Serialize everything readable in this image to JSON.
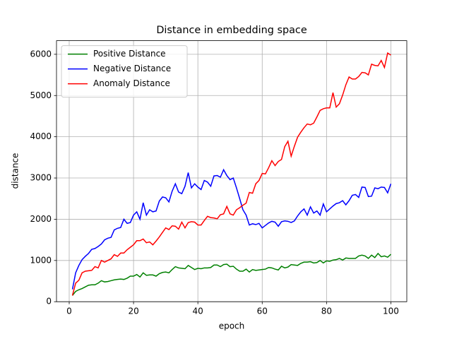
{
  "chart_data": {
    "type": "line",
    "title": "Distance in embedding space",
    "xlabel": "epoch",
    "ylabel": "distance",
    "x": [
      1,
      2,
      3,
      4,
      5,
      6,
      7,
      8,
      9,
      10,
      11,
      12,
      13,
      14,
      15,
      16,
      17,
      18,
      19,
      20,
      21,
      22,
      23,
      24,
      25,
      26,
      27,
      28,
      29,
      30,
      31,
      32,
      33,
      34,
      35,
      36,
      37,
      38,
      39,
      40,
      41,
      42,
      43,
      44,
      45,
      46,
      47,
      48,
      49,
      50,
      51,
      52,
      53,
      54,
      55,
      56,
      57,
      58,
      59,
      60,
      61,
      62,
      63,
      64,
      65,
      66,
      67,
      68,
      69,
      70,
      71,
      72,
      73,
      74,
      75,
      76,
      77,
      78,
      79,
      80,
      81,
      82,
      83,
      84,
      85,
      86,
      87,
      88,
      89,
      90,
      91,
      92,
      93,
      94,
      95,
      96,
      97,
      98,
      99,
      100
    ],
    "series": [
      {
        "name": "Positive Distance",
        "color": "#008000",
        "values": [
          150,
          250,
          290,
          320,
          360,
          400,
          410,
          410,
          450,
          510,
          480,
          490,
          510,
          530,
          540,
          550,
          540,
          570,
          620,
          620,
          660,
          600,
          700,
          640,
          650,
          650,
          620,
          680,
          710,
          720,
          700,
          780,
          850,
          820,
          810,
          800,
          880,
          830,
          780,
          810,
          800,
          820,
          820,
          830,
          890,
          890,
          850,
          900,
          910,
          850,
          860,
          790,
          740,
          740,
          790,
          720,
          780,
          760,
          770,
          780,
          790,
          830,
          820,
          790,
          770,
          860,
          820,
          840,
          900,
          890,
          880,
          930,
          960,
          960,
          970,
          940,
          950,
          1000,
          940,
          990,
          980,
          1010,
          1020,
          1050,
          1010,
          1060,
          1050,
          1050,
          1050,
          1110,
          1130,
          1110,
          1050,
          1130,
          1070,
          1170,
          1090,
          1110,
          1080,
          1150
        ]
      },
      {
        "name": "Negative Distance",
        "color": "#0000ff",
        "values": [
          300,
          700,
          880,
          1020,
          1100,
          1170,
          1270,
          1290,
          1340,
          1400,
          1500,
          1540,
          1560,
          1740,
          1780,
          1800,
          2000,
          1900,
          1920,
          2100,
          2180,
          2000,
          2400,
          2100,
          2230,
          2180,
          2200,
          2440,
          2540,
          2520,
          2420,
          2680,
          2860,
          2660,
          2620,
          2800,
          3130,
          2760,
          2860,
          2780,
          2720,
          2940,
          2900,
          2800,
          3050,
          3060,
          3020,
          3200,
          3060,
          2960,
          3000,
          2760,
          2500,
          2230,
          2100,
          1860,
          1890,
          1870,
          1900,
          1790,
          1850,
          1910,
          1950,
          1930,
          1830,
          1940,
          1960,
          1950,
          1920,
          1960,
          2080,
          2180,
          2250,
          2100,
          2300,
          2150,
          2200,
          2100,
          2370,
          2180,
          2250,
          2320,
          2380,
          2400,
          2450,
          2350,
          2450,
          2580,
          2600,
          2530,
          2780,
          2770,
          2550,
          2560,
          2760,
          2740,
          2780,
          2770,
          2640,
          2860
        ]
      },
      {
        "name": "Anomaly Distance",
        "color": "#ff0000",
        "values": [
          150,
          450,
          520,
          700,
          740,
          750,
          760,
          850,
          820,
          1000,
          960,
          1000,
          1040,
          1140,
          1100,
          1180,
          1180,
          1260,
          1320,
          1380,
          1480,
          1480,
          1520,
          1430,
          1450,
          1380,
          1470,
          1570,
          1680,
          1790,
          1750,
          1840,
          1830,
          1760,
          1930,
          1790,
          1920,
          1940,
          1930,
          1860,
          1860,
          1970,
          2070,
          2040,
          2030,
          2010,
          2110,
          2130,
          2310,
          2130,
          2100,
          2230,
          2280,
          2340,
          2390,
          2650,
          2630,
          2860,
          2940,
          3110,
          3100,
          3250,
          3420,
          3300,
          3400,
          3450,
          3760,
          3890,
          3530,
          3770,
          3990,
          4110,
          4220,
          4310,
          4290,
          4330,
          4480,
          4640,
          4680,
          4700,
          4700,
          5070,
          4720,
          4800,
          5010,
          5260,
          5450,
          5400,
          5400,
          5460,
          5560,
          5550,
          5500,
          5760,
          5730,
          5720,
          5850,
          5680,
          6030,
          5980
        ]
      }
    ],
    "xlim": [
      -3.95,
      104.95
    ],
    "xticks": [
      0,
      20,
      40,
      60,
      80,
      100
    ],
    "ylim": [
      0,
      6330
    ],
    "yticks": [
      0,
      1000,
      2000,
      3000,
      4000,
      5000,
      6000
    ],
    "grid": true,
    "legend": "upper left"
  }
}
